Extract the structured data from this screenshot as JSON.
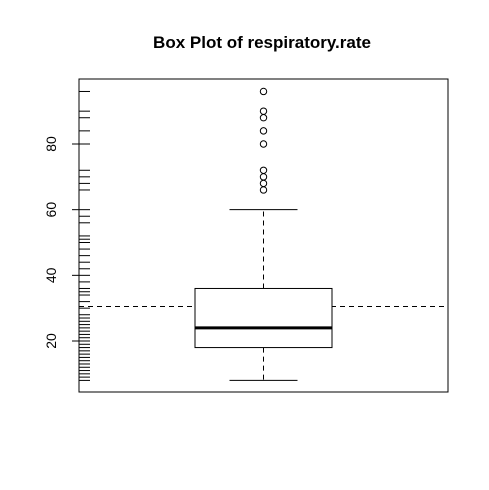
{
  "chart_data": {
    "type": "boxplot",
    "title": "Box Plot of respiratory.rate",
    "xlabel": "",
    "ylabel": "",
    "ylim": [
      4,
      99
    ],
    "yticks": [
      20,
      40,
      60,
      80
    ],
    "box": {
      "whisker_low": 8,
      "q1": 18,
      "median": 24,
      "q3": 36,
      "whisker_high": 60
    },
    "outliers": [
      66,
      68,
      70,
      72,
      80,
      84,
      88,
      90,
      96
    ],
    "reference_line": {
      "y": 30.5,
      "style": "dashed"
    },
    "rug": [
      8,
      9,
      10,
      11,
      12,
      13,
      14,
      15,
      16,
      17,
      18,
      19,
      20,
      21,
      22,
      23,
      24,
      25,
      26,
      27,
      28,
      30,
      32,
      34,
      35,
      36,
      38,
      40,
      42,
      44,
      46,
      48,
      50,
      51,
      52,
      56,
      58,
      60,
      66,
      68,
      70,
      72,
      80,
      84,
      88,
      90,
      96
    ],
    "grid": false,
    "legend": "none"
  }
}
